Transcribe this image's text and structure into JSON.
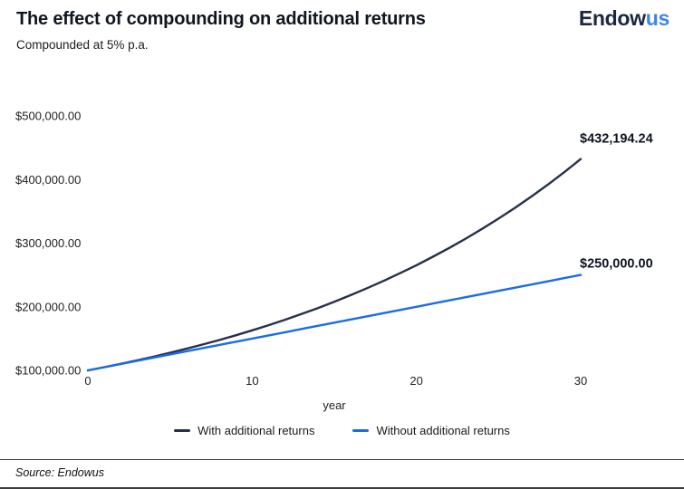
{
  "header": {
    "title": "The effect of compounding on additional returns",
    "subtitle": "Compounded at 5% p.a.",
    "logo": {
      "part1": "Endow",
      "part2": "us"
    }
  },
  "chart_data": {
    "type": "line",
    "title": "The effect of compounding on additional returns",
    "subtitle": "Compounded at 5% p.a.",
    "xlabel": "year",
    "ylabel": "",
    "grid": false,
    "legend_position": "bottom",
    "x_range": [
      0,
      30
    ],
    "y_range": [
      100000,
      500000
    ],
    "x": [
      0,
      1,
      2,
      3,
      4,
      5,
      6,
      7,
      8,
      9,
      10,
      11,
      12,
      13,
      14,
      15,
      16,
      17,
      18,
      19,
      20,
      21,
      22,
      23,
      24,
      25,
      26,
      27,
      28,
      29,
      30
    ],
    "x_ticks": [
      {
        "label": "0",
        "value": 0
      },
      {
        "label": "10",
        "value": 10
      },
      {
        "label": "20",
        "value": 20
      },
      {
        "label": "30",
        "value": 30
      }
    ],
    "y_ticks": [
      {
        "label": "$500,000.00",
        "value": 500000
      },
      {
        "label": "$400,000.00",
        "value": 400000
      },
      {
        "label": "$300,000.00",
        "value": 300000
      },
      {
        "label": "$200,000.00",
        "value": 200000
      },
      {
        "label": "$100,000.00",
        "value": 100000
      }
    ],
    "series": [
      {
        "name": "With additional returns",
        "color": "#263049",
        "end_label": "$432,194.24",
        "values": [
          100000.0,
          105000.0,
          110250.0,
          115762.5,
          121550.63,
          127628.16,
          134009.56,
          140710.04,
          147745.54,
          155132.82,
          162889.46,
          171033.94,
          179585.63,
          188564.91,
          197993.16,
          207892.82,
          218287.46,
          229201.83,
          240661.92,
          252695.02,
          265329.77,
          278596.26,
          292526.07,
          307152.38,
          322509.99,
          338635.49,
          355567.27,
          373345.63,
          392012.91,
          411613.56,
          432194.24
        ]
      },
      {
        "name": "Without additional returns",
        "color": "#1a6ce8",
        "end_label": "$250,000.00",
        "values": [
          100000,
          105000,
          110000,
          115000,
          120000,
          125000,
          130000,
          135000,
          140000,
          145000,
          150000,
          155000,
          160000,
          165000,
          170000,
          175000,
          180000,
          185000,
          190000,
          195000,
          200000,
          205000,
          210000,
          215000,
          220000,
          225000,
          230000,
          235000,
          240000,
          245000,
          250000
        ]
      }
    ]
  },
  "footer": {
    "source": "Source: Endowus"
  }
}
